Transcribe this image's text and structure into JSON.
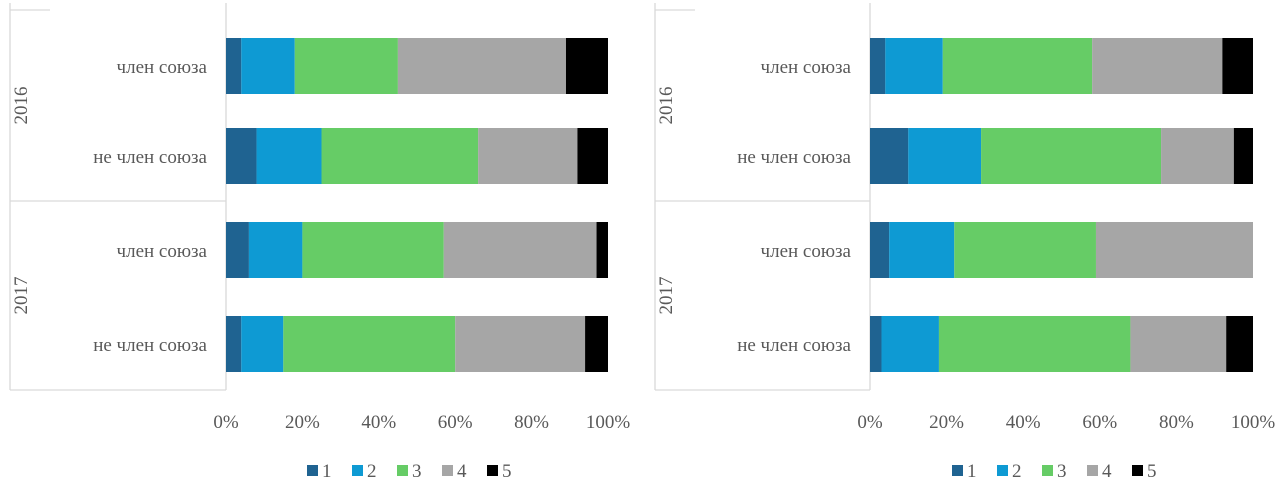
{
  "chart_data": [
    {
      "type": "bar",
      "orientation": "horizontal",
      "stacked": "percent",
      "groups": [
        {
          "label": "2016",
          "categories": [
            "член союза",
            "не член союза"
          ]
        },
        {
          "label": "2017",
          "categories": [
            "член союза",
            "не член союза"
          ]
        }
      ],
      "series": [
        {
          "name": "1",
          "color": "#1F6391",
          "values": [
            4,
            8,
            6,
            4
          ]
        },
        {
          "name": "2",
          "color": "#0E9AD3",
          "values": [
            14,
            17,
            14,
            11
          ]
        },
        {
          "name": "3",
          "color": "#66CC66",
          "values": [
            27,
            41,
            37,
            45
          ]
        },
        {
          "name": "4",
          "color": "#A6A6A6",
          "values": [
            44,
            26,
            40,
            34
          ]
        },
        {
          "name": "5",
          "color": "#000000",
          "values": [
            11,
            8,
            3,
            6
          ]
        }
      ],
      "x_ticks": [
        "0%",
        "20%",
        "40%",
        "60%",
        "80%",
        "100%"
      ],
      "xlim": [
        0,
        100
      ],
      "legend_position": "bottom",
      "grid": false
    },
    {
      "type": "bar",
      "orientation": "horizontal",
      "stacked": "percent",
      "groups": [
        {
          "label": "2016",
          "categories": [
            "член союза",
            "не член союза"
          ]
        },
        {
          "label": "2017",
          "categories": [
            "член союза",
            "не член союза"
          ]
        }
      ],
      "series": [
        {
          "name": "1",
          "color": "#1F6391",
          "values": [
            4,
            10,
            5,
            3
          ]
        },
        {
          "name": "2",
          "color": "#0E9AD3",
          "values": [
            15,
            19,
            17,
            15
          ]
        },
        {
          "name": "3",
          "color": "#66CC66",
          "values": [
            39,
            47,
            37,
            50
          ]
        },
        {
          "name": "4",
          "color": "#A6A6A6",
          "values": [
            34,
            19,
            41,
            25
          ]
        },
        {
          "name": "5",
          "color": "#000000",
          "values": [
            8,
            5,
            0,
            7
          ]
        }
      ],
      "x_ticks": [
        "0%",
        "20%",
        "40%",
        "60%",
        "80%",
        "100%"
      ],
      "xlim": [
        0,
        100
      ],
      "legend_position": "bottom",
      "grid": false
    }
  ]
}
